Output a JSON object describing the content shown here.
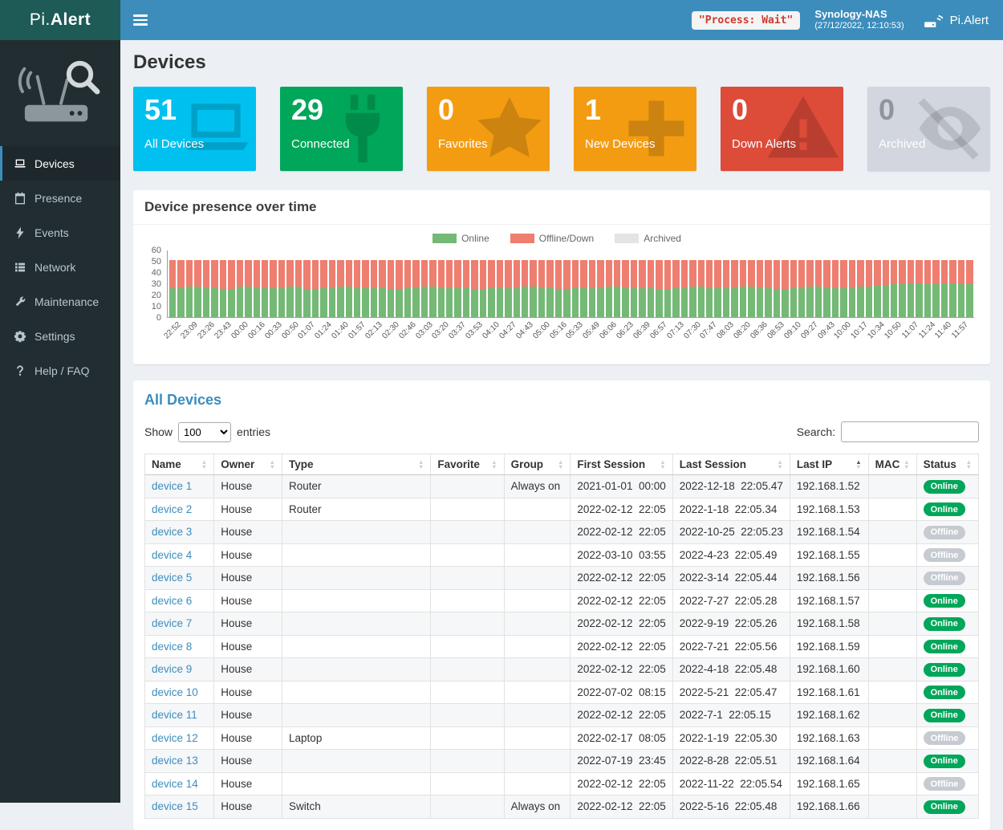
{
  "header": {
    "brand_prefix": "Pi.",
    "brand_bold": "Alert",
    "process_status": "\"Process: Wait\"",
    "host_name": "Synology-NAS",
    "host_time": "(27/12/2022, 12:10:53)",
    "right_brand": "Pi.Alert"
  },
  "sidebar": {
    "items": [
      {
        "label": "Devices",
        "icon": "laptop-icon",
        "active": true
      },
      {
        "label": "Presence",
        "icon": "calendar-icon",
        "active": false
      },
      {
        "label": "Events",
        "icon": "bolt-icon",
        "active": false
      },
      {
        "label": "Network",
        "icon": "list-icon",
        "active": false
      },
      {
        "label": "Maintenance",
        "icon": "wrench-icon",
        "active": false
      },
      {
        "label": "Settings",
        "icon": "gear-icon",
        "active": false
      },
      {
        "label": "Help / FAQ",
        "icon": "question-icon",
        "active": false
      }
    ]
  },
  "page": {
    "title": "Devices"
  },
  "info_boxes": [
    {
      "value": "51",
      "label": "All Devices",
      "color": "#00c0ef",
      "icon": "laptop-icon",
      "muted": false
    },
    {
      "value": "29",
      "label": "Connected",
      "color": "#00a65a",
      "icon": "plug-icon",
      "muted": false
    },
    {
      "value": "0",
      "label": "Favorites",
      "color": "#f39c12",
      "icon": "star-icon",
      "muted": false
    },
    {
      "value": "1",
      "label": "New Devices",
      "color": "#f39c12",
      "icon": "plus-icon",
      "muted": false
    },
    {
      "value": "0",
      "label": "Down Alerts",
      "color": "#dd4b39",
      "icon": "warning-icon",
      "muted": false
    },
    {
      "value": "0",
      "label": "Archived",
      "color": "#d2d6de",
      "icon": "eye-slash-icon",
      "muted": true
    }
  ],
  "presence": {
    "title": "Device presence over time",
    "chart_data": {
      "type": "bar",
      "stacked": true,
      "title": "Device presence over time",
      "xlabel": "",
      "ylabel": "",
      "ylim": [
        0,
        60
      ],
      "yticks": [
        0,
        10,
        20,
        30,
        40,
        50,
        60
      ],
      "grid": false,
      "legend_position": "top",
      "x": [
        "22:52",
        "23:09",
        "23:26",
        "23:43",
        "00:00",
        "00:16",
        "00:33",
        "00:50",
        "01:07",
        "01:24",
        "01:40",
        "01:57",
        "02:13",
        "02:30",
        "02:46",
        "03:03",
        "03:20",
        "03:37",
        "03:53",
        "04:10",
        "04:27",
        "04:43",
        "05:00",
        "05:16",
        "05:33",
        "05:49",
        "06:06",
        "06:23",
        "06:39",
        "06:57",
        "07:13",
        "07:30",
        "07:47",
        "08:03",
        "08:20",
        "08:36",
        "08:53",
        "09:10",
        "09:27",
        "09:43",
        "10:00",
        "10:17",
        "10:34",
        "10:50",
        "11:07",
        "11:24",
        "11:40",
        "11:57"
      ],
      "series": [
        {
          "name": "Online",
          "color": "#74b976",
          "values": [
            26,
            27,
            26,
            25,
            27,
            26,
            26,
            27,
            25,
            26,
            27,
            26,
            26,
            25,
            26,
            27,
            26,
            26,
            25,
            26,
            26,
            27,
            26,
            25,
            26,
            26,
            27,
            26,
            26,
            25,
            26,
            27,
            26,
            26,
            27,
            26,
            25,
            26,
            27,
            26,
            26,
            27,
            28,
            29,
            30,
            29,
            30,
            29
          ]
        },
        {
          "name": "Offline/Down",
          "color": "#ee7e70",
          "values": [
            25,
            24,
            25,
            26,
            24,
            25,
            25,
            24,
            26,
            25,
            24,
            25,
            25,
            26,
            25,
            24,
            25,
            25,
            26,
            25,
            25,
            24,
            25,
            26,
            25,
            25,
            24,
            25,
            25,
            26,
            25,
            24,
            25,
            25,
            24,
            25,
            26,
            25,
            24,
            25,
            25,
            24,
            23,
            22,
            21,
            22,
            21,
            22
          ]
        },
        {
          "name": "Archived",
          "color": "#e4e4e4",
          "values": [
            0,
            0,
            0,
            0,
            0,
            0,
            0,
            0,
            0,
            0,
            0,
            0,
            0,
            0,
            0,
            0,
            0,
            0,
            0,
            0,
            0,
            0,
            0,
            0,
            0,
            0,
            0,
            0,
            0,
            0,
            0,
            0,
            0,
            0,
            0,
            0,
            0,
            0,
            0,
            0,
            0,
            0,
            0,
            0,
            0,
            0,
            0,
            0
          ]
        }
      ]
    }
  },
  "table": {
    "title": "All Devices",
    "show_label": "Show",
    "entries_label": "entries",
    "length_value": "100",
    "search_label": "Search:",
    "search_value": "",
    "sorted_column": "Last IP",
    "columns": [
      "Name",
      "Owner",
      "Type",
      "Favorite",
      "Group",
      "First Session",
      "Last Session",
      "Last IP",
      "MAC",
      "Status"
    ],
    "rows": [
      {
        "name": "device 1",
        "owner": "House",
        "type": "Router",
        "favorite": "",
        "group": "Always on",
        "first_session": "2021-01-01  00:00",
        "last_session": "2022-12-18  22:05.47",
        "last_ip": "192.168.1.52",
        "mac": "",
        "status": "Online"
      },
      {
        "name": "device 2",
        "owner": "House",
        "type": "Router",
        "favorite": "",
        "group": "",
        "first_session": "2022-02-12  22:05",
        "last_session": "2022-1-18  22:05.34",
        "last_ip": "192.168.1.53",
        "mac": "",
        "status": "Online"
      },
      {
        "name": "device 3",
        "owner": "House",
        "type": "",
        "favorite": "",
        "group": "",
        "first_session": "2022-02-12  22:05",
        "last_session": "2022-10-25  22:05.23",
        "last_ip": "192.168.1.54",
        "mac": "",
        "status": "Offline"
      },
      {
        "name": "device 4",
        "owner": "House",
        "type": "",
        "favorite": "",
        "group": "",
        "first_session": "2022-03-10  03:55",
        "last_session": "2022-4-23  22:05.49",
        "last_ip": "192.168.1.55",
        "mac": "",
        "status": "Offline"
      },
      {
        "name": "device 5",
        "owner": "House",
        "type": "",
        "favorite": "",
        "group": "",
        "first_session": "2022-02-12  22:05",
        "last_session": "2022-3-14  22:05.44",
        "last_ip": "192.168.1.56",
        "mac": "",
        "status": "Offline"
      },
      {
        "name": "device 6",
        "owner": "House",
        "type": "",
        "favorite": "",
        "group": "",
        "first_session": "2022-02-12  22:05",
        "last_session": "2022-7-27  22:05.28",
        "last_ip": "192.168.1.57",
        "mac": "",
        "status": "Online"
      },
      {
        "name": "device 7",
        "owner": "House",
        "type": "",
        "favorite": "",
        "group": "",
        "first_session": "2022-02-12  22:05",
        "last_session": "2022-9-19  22:05.26",
        "last_ip": "192.168.1.58",
        "mac": "",
        "status": "Online"
      },
      {
        "name": "device 8",
        "owner": "House",
        "type": "",
        "favorite": "",
        "group": "",
        "first_session": "2022-02-12  22:05",
        "last_session": "2022-7-21  22:05.56",
        "last_ip": "192.168.1.59",
        "mac": "",
        "status": "Online"
      },
      {
        "name": "device 9",
        "owner": "House",
        "type": "",
        "favorite": "",
        "group": "",
        "first_session": "2022-02-12  22:05",
        "last_session": "2022-4-18  22:05.48",
        "last_ip": "192.168.1.60",
        "mac": "",
        "status": "Online"
      },
      {
        "name": "device 10",
        "owner": "House",
        "type": "",
        "favorite": "",
        "group": "",
        "first_session": "2022-07-02  08:15",
        "last_session": "2022-5-21  22:05.47",
        "last_ip": "192.168.1.61",
        "mac": "",
        "status": "Online"
      },
      {
        "name": "device 11",
        "owner": "House",
        "type": "",
        "favorite": "",
        "group": "",
        "first_session": "2022-02-12  22:05",
        "last_session": "2022-7-1  22:05.15",
        "last_ip": "192.168.1.62",
        "mac": "",
        "status": "Online"
      },
      {
        "name": "device 12",
        "owner": "House",
        "type": "Laptop",
        "favorite": "",
        "group": "",
        "first_session": "2022-02-17  08:05",
        "last_session": "2022-1-19  22:05.30",
        "last_ip": "192.168.1.63",
        "mac": "",
        "status": "Offline"
      },
      {
        "name": "device 13",
        "owner": "House",
        "type": "",
        "favorite": "",
        "group": "",
        "first_session": "2022-07-19  23:45",
        "last_session": "2022-8-28  22:05.51",
        "last_ip": "192.168.1.64",
        "mac": "",
        "status": "Online"
      },
      {
        "name": "device 14",
        "owner": "House",
        "type": "",
        "favorite": "",
        "group": "",
        "first_session": "2022-02-12  22:05",
        "last_session": "2022-11-22  22:05.54",
        "last_ip": "192.168.1.65",
        "mac": "",
        "status": "Offline"
      },
      {
        "name": "device 15",
        "owner": "House",
        "type": "Switch",
        "favorite": "",
        "group": "Always on",
        "first_session": "2022-02-12  22:05",
        "last_session": "2022-5-16  22:05.48",
        "last_ip": "192.168.1.66",
        "mac": "",
        "status": "Online"
      }
    ]
  }
}
